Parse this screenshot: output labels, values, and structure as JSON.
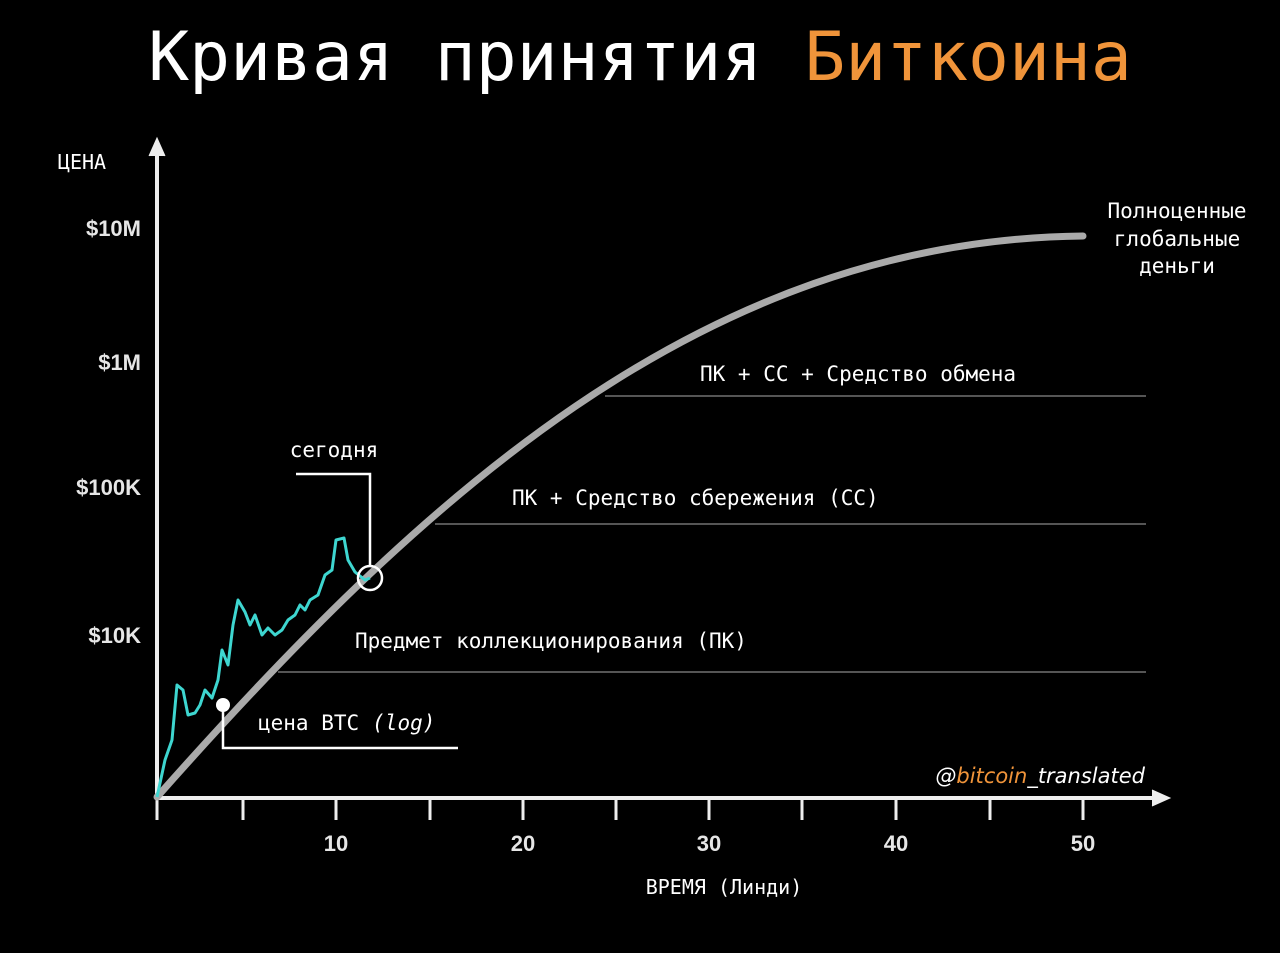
{
  "title": {
    "main": "Кривая принятия",
    "highlight": "Биткоина"
  },
  "y_axis": {
    "label": "ЦЕНА",
    "ticks": [
      "$10M",
      "$1M",
      "$100K",
      "$10K"
    ]
  },
  "x_axis": {
    "label": "ВРЕМЯ (Линди)",
    "ticks": [
      "10",
      "20",
      "30",
      "40",
      "50"
    ]
  },
  "stages": {
    "global_money": [
      "Полноценные",
      "глобальные",
      "деньги"
    ],
    "exchange": "ПК + СС + Средство обмена",
    "store_of_value": "ПК + Средство сбережения (СС)",
    "collectible": "Предмет коллекционирования (ПК)"
  },
  "annotations": {
    "today": "сегодня",
    "btc_price": "цена BTC",
    "log": "(log)"
  },
  "watermark": {
    "at": "@",
    "brand": "bitcoin",
    "rest": "_translated"
  }
}
